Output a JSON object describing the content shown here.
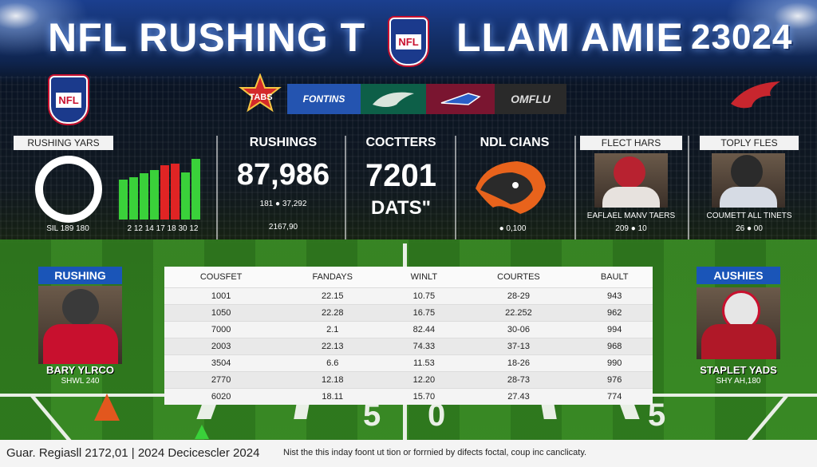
{
  "header": {
    "title_left": "NFL RUSHING T",
    "title_mid": "LLAM  AMIE",
    "title_year": "23024",
    "center_logo_text": "NFL"
  },
  "logos": {
    "left_logo_text": "NFL",
    "badge_text": "TABS",
    "strip": [
      "FONTINS",
      "",
      "",
      "OMFLU"
    ]
  },
  "panels": {
    "rushing_yards": {
      "label": "RUSHING YARS",
      "legend": "SIL  189  180",
      "bar_ticks": "2  12  14  17  18  30  12",
      "bars": [
        {
          "value": 0.62,
          "color": "#3ad13a"
        },
        {
          "value": 0.66,
          "color": "#3ad13a"
        },
        {
          "value": 0.72,
          "color": "#3ad13a"
        },
        {
          "value": 0.78,
          "color": "#3ad13a"
        },
        {
          "value": 0.85,
          "color": "#e02424"
        },
        {
          "value": 0.88,
          "color": "#e02424"
        },
        {
          "value": 0.74,
          "color": "#3ad13a"
        },
        {
          "value": 0.95,
          "color": "#3ad13a"
        }
      ]
    },
    "rushings": {
      "title": "RUSHINGS",
      "value": "87,986",
      "sub1": "181 ● 37,292",
      "sub2": "2167,90"
    },
    "coctters": {
      "title": "COCTTERS",
      "value": "7201",
      "unit": "DATS\""
    },
    "ndl": {
      "title": "NDL CIANS",
      "sub": "● 0,100"
    },
    "flect": {
      "label": "FLECT HARS",
      "caption": "EAFLAEL MANV TAERS",
      "sub": "209 ● 10"
    },
    "toply": {
      "label": "TOPLY FLES",
      "caption": "COUMETT ALL TINETS",
      "sub": "26 ● 00"
    }
  },
  "left_player": {
    "label": "RUSHING",
    "name": "BARY YLRCO",
    "sub": "SHWL 240"
  },
  "right_player": {
    "label": "AUSHIES",
    "name": "STAPLET YADS",
    "sub": "SHY AH,180"
  },
  "table": {
    "headers": [
      "COUSFET",
      "FANDAYS",
      "WINLT",
      "COURTES",
      "BAULT"
    ],
    "rows": [
      [
        "1001",
        "22.15",
        "10.75",
        "28-29",
        "943"
      ],
      [
        "1050",
        "22.28",
        "16.75",
        "22.252",
        "962"
      ],
      [
        "7000",
        "2.1",
        "82.44",
        "30-06",
        "994"
      ],
      [
        "2003",
        "22.13",
        "74.33",
        "37-13",
        "968"
      ],
      [
        "3504",
        "6.6",
        "11.53",
        "18-26",
        "990"
      ],
      [
        "2770",
        "12.18",
        "12.20",
        "28-73",
        "976"
      ],
      [
        "6020",
        "18.11",
        "15.70",
        "27.43",
        "774"
      ]
    ]
  },
  "field": {
    "yard_left": "5",
    "yard_mid": "0",
    "yard_right": "5"
  },
  "footer": {
    "left": "Guar. Regiasll 2172,01  |  2024 Decicescler 2024",
    "right": "Nist the this inday foont ut tion or forrnied by difects foctal, coup inc canclicaty."
  },
  "colors": {
    "accent_blue": "#1a55b8",
    "bar_green": "#3ad13a",
    "bar_red": "#e02424"
  }
}
